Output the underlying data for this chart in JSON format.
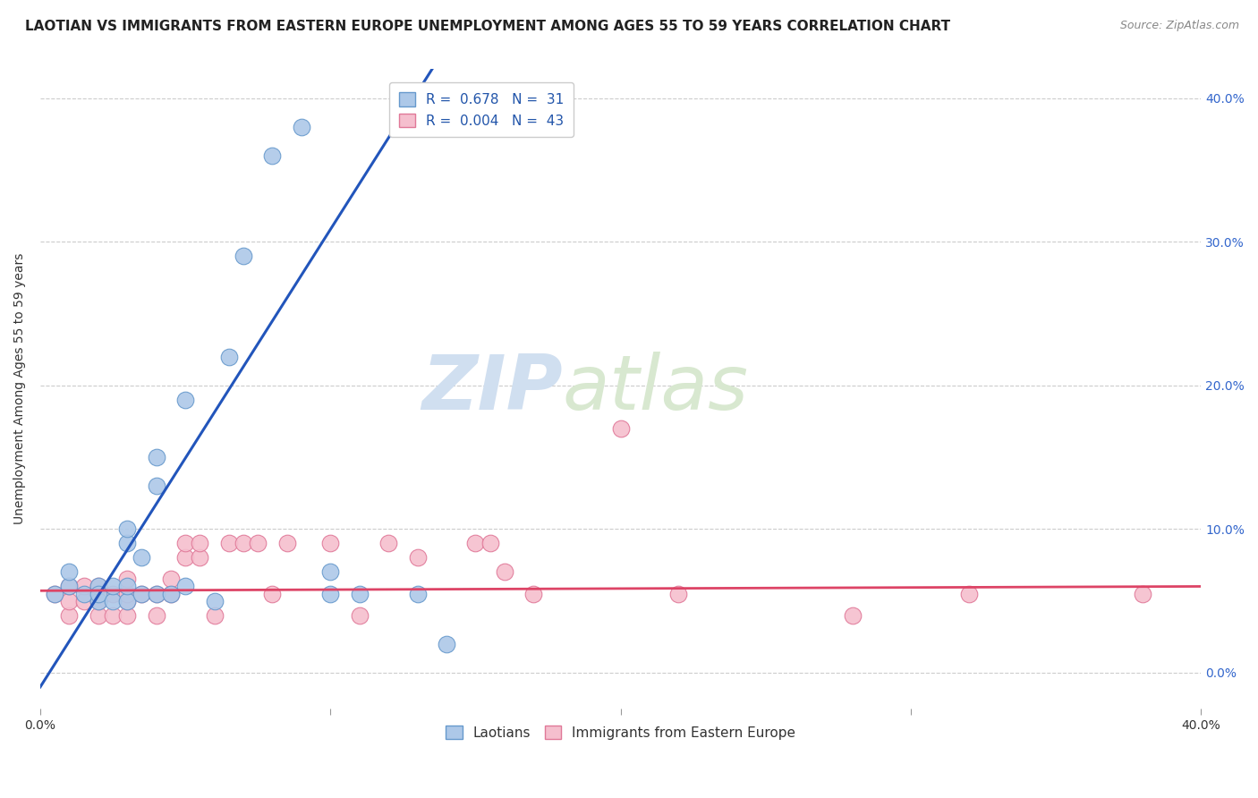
{
  "title": "LAOTIAN VS IMMIGRANTS FROM EASTERN EUROPE UNEMPLOYMENT AMONG AGES 55 TO 59 YEARS CORRELATION CHART",
  "source": "Source: ZipAtlas.com",
  "ylabel": "Unemployment Among Ages 55 to 59 years",
  "xlim": [
    0.0,
    0.4
  ],
  "ylim": [
    -0.025,
    0.42
  ],
  "xticks": [
    0.0,
    0.1,
    0.2,
    0.3,
    0.4
  ],
  "yticks": [
    0.0,
    0.1,
    0.2,
    0.3,
    0.4
  ],
  "blue_R": 0.678,
  "blue_N": 31,
  "pink_R": 0.004,
  "pink_N": 43,
  "blue_label": "Laotians",
  "pink_label": "Immigrants from Eastern Europe",
  "blue_color": "#adc8e8",
  "blue_edge": "#6699cc",
  "pink_color": "#f5bfce",
  "pink_edge": "#e07898",
  "blue_line_color": "#2255bb",
  "pink_line_color": "#dd4466",
  "watermark_zip": "ZIP",
  "watermark_atlas": "atlas",
  "background_color": "#ffffff",
  "blue_scatter_x": [
    0.005,
    0.01,
    0.01,
    0.015,
    0.02,
    0.02,
    0.02,
    0.025,
    0.025,
    0.03,
    0.03,
    0.03,
    0.03,
    0.035,
    0.035,
    0.04,
    0.04,
    0.04,
    0.045,
    0.05,
    0.05,
    0.06,
    0.065,
    0.07,
    0.08,
    0.09,
    0.1,
    0.1,
    0.11,
    0.13,
    0.14
  ],
  "blue_scatter_y": [
    0.055,
    0.06,
    0.07,
    0.055,
    0.05,
    0.06,
    0.055,
    0.05,
    0.06,
    0.05,
    0.06,
    0.09,
    0.1,
    0.055,
    0.08,
    0.055,
    0.13,
    0.15,
    0.055,
    0.06,
    0.19,
    0.05,
    0.22,
    0.29,
    0.36,
    0.38,
    0.055,
    0.07,
    0.055,
    0.055,
    0.02
  ],
  "pink_scatter_x": [
    0.005,
    0.01,
    0.01,
    0.01,
    0.015,
    0.015,
    0.02,
    0.02,
    0.02,
    0.025,
    0.025,
    0.03,
    0.03,
    0.03,
    0.03,
    0.035,
    0.04,
    0.04,
    0.045,
    0.045,
    0.05,
    0.05,
    0.055,
    0.055,
    0.06,
    0.065,
    0.07,
    0.075,
    0.08,
    0.085,
    0.1,
    0.11,
    0.12,
    0.13,
    0.15,
    0.155,
    0.16,
    0.17,
    0.2,
    0.22,
    0.28,
    0.32,
    0.38
  ],
  "pink_scatter_y": [
    0.055,
    0.04,
    0.05,
    0.06,
    0.05,
    0.06,
    0.04,
    0.05,
    0.06,
    0.04,
    0.055,
    0.04,
    0.05,
    0.055,
    0.065,
    0.055,
    0.04,
    0.055,
    0.055,
    0.065,
    0.08,
    0.09,
    0.08,
    0.09,
    0.04,
    0.09,
    0.09,
    0.09,
    0.055,
    0.09,
    0.09,
    0.04,
    0.09,
    0.08,
    0.09,
    0.09,
    0.07,
    0.055,
    0.17,
    0.055,
    0.04,
    0.055,
    0.055
  ],
  "blue_line_x0": 0.0,
  "blue_line_y0": -0.01,
  "blue_line_x1": 0.135,
  "blue_line_y1": 0.42,
  "pink_line_x0": 0.0,
  "pink_line_y0": 0.057,
  "pink_line_x1": 0.4,
  "pink_line_y1": 0.06,
  "title_fontsize": 11,
  "axis_fontsize": 10,
  "tick_fontsize": 10,
  "legend_fontsize": 11
}
